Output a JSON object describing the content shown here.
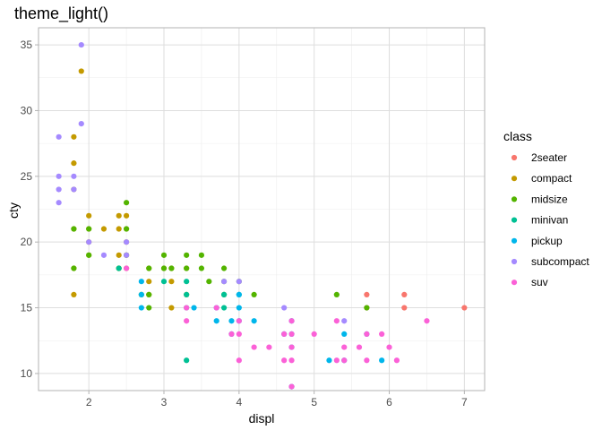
{
  "chart_data": {
    "type": "scatter",
    "title": "theme_light()",
    "xlabel": "displ",
    "ylabel": "cty",
    "xlim": [
      1.33,
      7.27
    ],
    "ylim": [
      8.7,
      36.3
    ],
    "xticks": [
      2,
      3,
      4,
      5,
      6,
      7
    ],
    "yticks": [
      10,
      15,
      20,
      25,
      30,
      35
    ],
    "grid": true,
    "legend": {
      "title": "class",
      "placement": "right",
      "entries": [
        {
          "name": "2seater",
          "color": "#F8766D"
        },
        {
          "name": "compact",
          "color": "#C49A00"
        },
        {
          "name": "midsize",
          "color": "#53B400"
        },
        {
          "name": "minivan",
          "color": "#00C094"
        },
        {
          "name": "pickup",
          "color": "#00B6EB"
        },
        {
          "name": "subcompact",
          "color": "#A58AFF"
        },
        {
          "name": "suv",
          "color": "#FB61D7"
        }
      ]
    },
    "series": [
      {
        "name": "2seater",
        "points": [
          [
            5.7,
            15
          ],
          [
            5.7,
            16
          ],
          [
            6.2,
            15
          ],
          [
            6.2,
            16
          ],
          [
            7.0,
            15
          ]
        ]
      },
      {
        "name": "compact",
        "points": [
          [
            1.8,
            16
          ],
          [
            1.8,
            18
          ],
          [
            1.8,
            21
          ],
          [
            1.8,
            24
          ],
          [
            1.8,
            26
          ],
          [
            1.8,
            28
          ],
          [
            1.9,
            33
          ],
          [
            2.0,
            19
          ],
          [
            2.0,
            20
          ],
          [
            2.0,
            21
          ],
          [
            2.0,
            22
          ],
          [
            2.2,
            21
          ],
          [
            2.4,
            18
          ],
          [
            2.4,
            19
          ],
          [
            2.4,
            21
          ],
          [
            2.4,
            22
          ],
          [
            2.5,
            18
          ],
          [
            2.5,
            19
          ],
          [
            2.5,
            20
          ],
          [
            2.5,
            21
          ],
          [
            2.5,
            22
          ],
          [
            2.8,
            16
          ],
          [
            2.8,
            17
          ],
          [
            2.8,
            18
          ],
          [
            3.0,
            18
          ],
          [
            3.1,
            15
          ],
          [
            3.1,
            17
          ],
          [
            3.1,
            18
          ],
          [
            3.3,
            16
          ],
          [
            3.3,
            18
          ]
        ]
      },
      {
        "name": "midsize",
        "points": [
          [
            1.8,
            18
          ],
          [
            1.8,
            21
          ],
          [
            2.0,
            19
          ],
          [
            2.0,
            21
          ],
          [
            2.4,
            18
          ],
          [
            2.5,
            19
          ],
          [
            2.5,
            21
          ],
          [
            2.5,
            23
          ],
          [
            2.7,
            16
          ],
          [
            2.8,
            15
          ],
          [
            2.8,
            16
          ],
          [
            2.8,
            18
          ],
          [
            3.0,
            18
          ],
          [
            3.0,
            19
          ],
          [
            3.1,
            18
          ],
          [
            3.3,
            18
          ],
          [
            3.3,
            19
          ],
          [
            3.5,
            18
          ],
          [
            3.5,
            19
          ],
          [
            3.6,
            17
          ],
          [
            3.8,
            16
          ],
          [
            3.8,
            17
          ],
          [
            3.8,
            18
          ],
          [
            4.0,
            17
          ],
          [
            4.2,
            16
          ],
          [
            5.3,
            16
          ],
          [
            5.7,
            15
          ]
        ]
      },
      {
        "name": "minivan",
        "points": [
          [
            2.4,
            18
          ],
          [
            3.0,
            17
          ],
          [
            3.3,
            11
          ],
          [
            3.3,
            15
          ],
          [
            3.3,
            16
          ],
          [
            3.3,
            17
          ],
          [
            3.8,
            15
          ],
          [
            3.8,
            16
          ],
          [
            4.0,
            16
          ]
        ]
      },
      {
        "name": "pickup",
        "points": [
          [
            2.7,
            15
          ],
          [
            2.7,
            16
          ],
          [
            2.7,
            17
          ],
          [
            3.4,
            15
          ],
          [
            3.7,
            14
          ],
          [
            3.7,
            15
          ],
          [
            3.9,
            13
          ],
          [
            3.9,
            14
          ],
          [
            4.0,
            14
          ],
          [
            4.0,
            15
          ],
          [
            4.0,
            16
          ],
          [
            4.2,
            14
          ],
          [
            4.6,
            13
          ],
          [
            4.7,
            9
          ],
          [
            4.7,
            12
          ],
          [
            4.7,
            13
          ],
          [
            4.7,
            14
          ],
          [
            5.2,
            11
          ],
          [
            5.4,
            11
          ],
          [
            5.4,
            13
          ],
          [
            5.7,
            13
          ],
          [
            5.9,
            11
          ]
        ]
      },
      {
        "name": "subcompact",
        "points": [
          [
            1.6,
            23
          ],
          [
            1.6,
            24
          ],
          [
            1.6,
            25
          ],
          [
            1.6,
            28
          ],
          [
            1.8,
            24
          ],
          [
            1.8,
            25
          ],
          [
            1.9,
            29
          ],
          [
            1.9,
            35
          ],
          [
            2.0,
            20
          ],
          [
            2.2,
            19
          ],
          [
            2.5,
            19
          ],
          [
            2.5,
            20
          ],
          [
            3.8,
            17
          ],
          [
            4.0,
            17
          ],
          [
            4.6,
            15
          ],
          [
            5.4,
            14
          ]
        ]
      },
      {
        "name": "suv",
        "points": [
          [
            2.5,
            18
          ],
          [
            3.3,
            14
          ],
          [
            3.3,
            15
          ],
          [
            3.7,
            15
          ],
          [
            3.9,
            13
          ],
          [
            4.0,
            11
          ],
          [
            4.0,
            13
          ],
          [
            4.0,
            14
          ],
          [
            4.2,
            12
          ],
          [
            4.4,
            12
          ],
          [
            4.6,
            11
          ],
          [
            4.6,
            13
          ],
          [
            4.7,
            9
          ],
          [
            4.7,
            11
          ],
          [
            4.7,
            12
          ],
          [
            4.7,
            13
          ],
          [
            4.7,
            14
          ],
          [
            5.0,
            13
          ],
          [
            5.3,
            11
          ],
          [
            5.3,
            14
          ],
          [
            5.4,
            11
          ],
          [
            5.4,
            12
          ],
          [
            5.6,
            12
          ],
          [
            5.7,
            11
          ],
          [
            5.7,
            13
          ],
          [
            5.9,
            13
          ],
          [
            6.0,
            12
          ],
          [
            6.1,
            11
          ],
          [
            6.5,
            14
          ]
        ]
      }
    ]
  }
}
